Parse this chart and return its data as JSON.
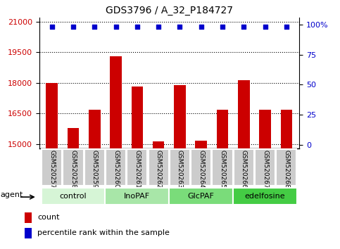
{
  "title": "GDS3796 / A_32_P184727",
  "samples": [
    "GSM520257",
    "GSM520258",
    "GSM520259",
    "GSM520260",
    "GSM520261",
    "GSM520262",
    "GSM520263",
    "GSM520264",
    "GSM520265",
    "GSM520266",
    "GSM520267",
    "GSM520268"
  ],
  "bar_values": [
    17980,
    15780,
    16680,
    19300,
    17830,
    15130,
    17900,
    15150,
    16680,
    18120,
    16680,
    16680
  ],
  "percentile_values": [
    98,
    98,
    98,
    98,
    98,
    98,
    98,
    98,
    98,
    98,
    98,
    98
  ],
  "bar_color": "#cc0000",
  "percentile_color": "#0000cc",
  "ylim_left": [
    14800,
    21200
  ],
  "ylim_right": [
    -3,
    106
  ],
  "yticks_left": [
    15000,
    16500,
    18000,
    19500,
    21000
  ],
  "yticks_right": [
    0,
    25,
    50,
    75,
    100
  ],
  "ytick_right_labels": [
    "0",
    "25",
    "50",
    "75",
    "100%"
  ],
  "groups": [
    {
      "label": "control",
      "indices": [
        0,
        1,
        2
      ],
      "color": "#d6f5d6"
    },
    {
      "label": "InoPAF",
      "indices": [
        3,
        4,
        5
      ],
      "color": "#a8e6a8"
    },
    {
      "label": "GlcPAF",
      "indices": [
        6,
        7,
        8
      ],
      "color": "#7adc7a"
    },
    {
      "label": "edelfosine",
      "indices": [
        9,
        10,
        11
      ],
      "color": "#44cc44"
    }
  ],
  "legend_count_label": "count",
  "legend_pct_label": "percentile rank within the sample",
  "agent_label": "agent",
  "bar_width": 0.55,
  "percentile_marker_size": 5,
  "background_color": "#ffffff",
  "tick_label_color_left": "#cc0000",
  "tick_label_color_right": "#0000cc",
  "sample_box_color": "#cccccc",
  "sample_box_edge": "#999999"
}
